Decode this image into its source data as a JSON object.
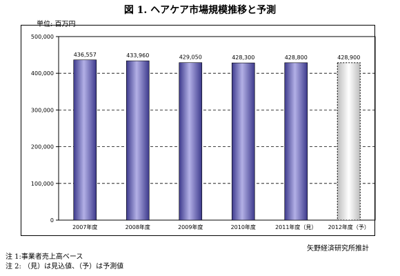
{
  "header": {
    "title": "図 1.  ヘアケア市場規模推移と予測",
    "unit": "単位: 百万円"
  },
  "chart_data": {
    "type": "bar",
    "categories": [
      "2007年度",
      "2008年度",
      "2009年度",
      "2010年度",
      "2011年度（見）",
      "2012年度（予）"
    ],
    "values": [
      436557,
      433960,
      429050,
      428300,
      428800,
      428900
    ],
    "value_labels": [
      "436,557",
      "433,960",
      "429,050",
      "428,300",
      "428,800",
      "428,900"
    ],
    "forecast_index": 5,
    "ylim": [
      0,
      500000
    ],
    "yticks": [
      0,
      100000,
      200000,
      300000,
      400000,
      500000
    ],
    "ytick_labels": [
      "0",
      "100,000",
      "200,000",
      "300,000",
      "400,000",
      "500,000"
    ],
    "grid": "dashed horizontal",
    "colors": {
      "bar": "#6a66b8",
      "bar_highlight": "#b3b0e6",
      "forecast": "#d9d9d9"
    }
  },
  "footer": {
    "source": "矢野経済研究所推計",
    "note1": "注 1:事業者売上高ベース",
    "note2": "注 2: （見）は見込値、（予）は予測値"
  }
}
